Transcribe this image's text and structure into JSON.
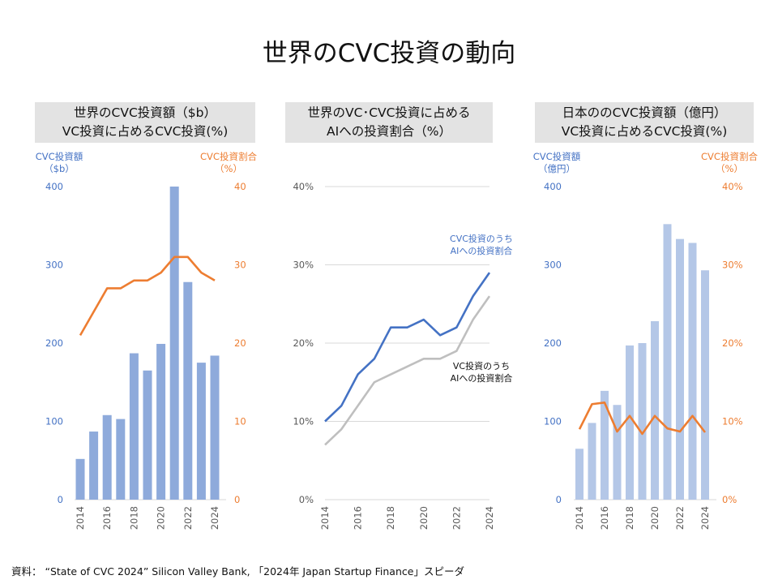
{
  "slide_title": "世界のCVC投資の動向",
  "source_note": "資料： “State of CVC 2024” Silicon Valley Bank, 「2024年 Japan Startup Finance」スピーダ",
  "colors": {
    "bar_blue": "#8eaadb",
    "bar_light": "#b4c7e7",
    "line_orange": "#ed7d31",
    "line_blue": "#4472c4",
    "line_gray": "#bfbfbf",
    "axis_blue": "#4472c4",
    "axis_orange": "#ed7d31"
  },
  "chart_data": [
    {
      "type": "bar",
      "title_line1": "世界のCVC投資額（$b）",
      "title_line2": "VC投資に占めるCVC投資(%)",
      "left_axis_caption": [
        "CVC投資額",
        "（$b）"
      ],
      "right_axis_caption": [
        "CVC投資割合",
        "（%）"
      ],
      "x": [
        2014,
        2015,
        2016,
        2017,
        2018,
        2019,
        2020,
        2021,
        2022,
        2023,
        2024
      ],
      "x_tick_labels": [
        "2014",
        "2016",
        "2018",
        "2020",
        "2022",
        "2024"
      ],
      "left_ylim": [
        0,
        400
      ],
      "left_ticks": [
        "0",
        "100",
        "200",
        "300",
        "400"
      ],
      "right_ylim": [
        0,
        40
      ],
      "right_ticks": [
        "0",
        "10",
        "20",
        "30",
        "40"
      ],
      "series": [
        {
          "kind": "bar",
          "axis": "left",
          "values": [
            52,
            87,
            108,
            103,
            187,
            165,
            199,
            400,
            278,
            175,
            184
          ]
        },
        {
          "kind": "line",
          "axis": "right",
          "values": [
            21,
            24,
            27,
            27,
            28,
            28,
            29,
            31,
            31,
            29,
            28
          ]
        }
      ]
    },
    {
      "type": "line",
      "title_line1": "世界のVC･CVC投資に占める",
      "title_line2": "AIへの投資割合（%）",
      "x": [
        2014,
        2015,
        2016,
        2017,
        2018,
        2019,
        2020,
        2021,
        2022,
        2023,
        2024
      ],
      "x_tick_labels": [
        "2014",
        "2016",
        "2018",
        "2020",
        "2022",
        "2024"
      ],
      "ylim": [
        0,
        40
      ],
      "y_ticks": [
        "0%",
        "10%",
        "20%",
        "30%",
        "40%"
      ],
      "series": [
        {
          "label_lines": [
            "CVC投資のうち",
            "AIへの投資割合"
          ],
          "values": [
            10,
            12,
            16,
            18,
            22,
            22,
            23,
            21,
            22,
            26,
            29
          ]
        },
        {
          "label_lines": [
            "VC投資のうち",
            "AIへの投資割合"
          ],
          "values": [
            7,
            9,
            12,
            15,
            16,
            17,
            18,
            18,
            19,
            23,
            26
          ]
        }
      ]
    },
    {
      "type": "bar",
      "title_line1": "日本ののCVC投資額（億円）",
      "title_line2": "VC投資に占めるCVC投資(%)",
      "left_axis_caption": [
        "CVC投資額",
        "（億円）"
      ],
      "right_axis_caption": [
        "CVC投資割合",
        "（%）"
      ],
      "x": [
        2014,
        2015,
        2016,
        2017,
        2018,
        2019,
        2020,
        2021,
        2022,
        2023,
        2024
      ],
      "x_tick_labels": [
        "2014",
        "2016",
        "2018",
        "2020",
        "2022",
        "2024"
      ],
      "left_ylim": [
        0,
        400
      ],
      "left_ticks": [
        "0",
        "100",
        "200",
        "300",
        "400"
      ],
      "right_ylim": [
        0,
        40
      ],
      "right_ticks": [
        "0%",
        "10%",
        "20%",
        "30%",
        "40%"
      ],
      "series": [
        {
          "kind": "bar",
          "axis": "left",
          "values": [
            65,
            98,
            139,
            121,
            197,
            200,
            228,
            352,
            333,
            328,
            293
          ]
        },
        {
          "kind": "line",
          "axis": "right",
          "values": [
            9,
            12.2,
            12.4,
            8.7,
            10.7,
            8.4,
            10.7,
            9.1,
            8.7,
            10.7,
            8.6
          ]
        }
      ]
    }
  ]
}
